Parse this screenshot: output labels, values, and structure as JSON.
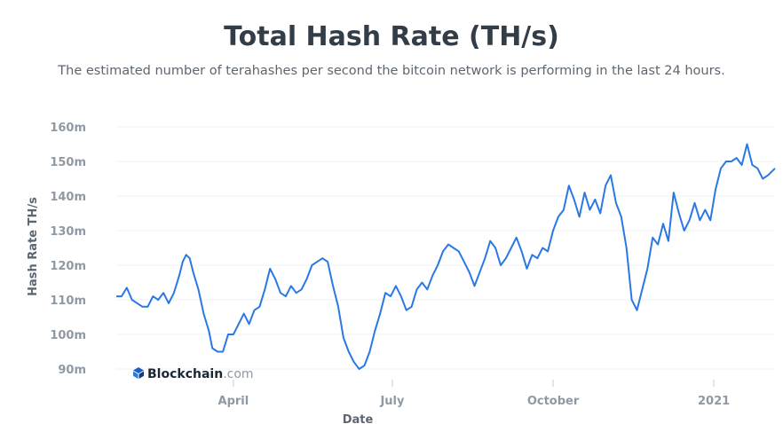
{
  "chart_data": {
    "type": "line",
    "title": "Total Hash Rate (TH/s)",
    "subtitle": "The estimated number of terahashes per second the bitcoin network is performing in the last 24 hours.",
    "xlabel": "Date",
    "ylabel": "Hash Rate TH/s",
    "ylim": [
      90,
      160
    ],
    "y_ticks": [
      {
        "value": 90,
        "label": "90m"
      },
      {
        "value": 100,
        "label": "100m"
      },
      {
        "value": 110,
        "label": "110m"
      },
      {
        "value": 120,
        "label": "120m"
      },
      {
        "value": 130,
        "label": "130m"
      },
      {
        "value": 140,
        "label": "140m"
      },
      {
        "value": 150,
        "label": "150m"
      },
      {
        "value": 160,
        "label": "160m"
      }
    ],
    "x_range": [
      "2020-01-25",
      "2021-02-05"
    ],
    "x_ticks": [
      {
        "date": "2020-04-01",
        "label": "April"
      },
      {
        "date": "2020-07-01",
        "label": "July"
      },
      {
        "date": "2020-10-01",
        "label": "October"
      },
      {
        "date": "2021-01-01",
        "label": "2021"
      }
    ],
    "grid": true,
    "legend": "none",
    "series": [
      {
        "color": "#2a78e4",
        "points": [
          [
            "2020-01-25",
            111
          ],
          [
            "2020-01-28",
            111
          ],
          [
            "2020-01-31",
            113.5
          ],
          [
            "2020-02-03",
            110
          ],
          [
            "2020-02-06",
            109
          ],
          [
            "2020-02-09",
            108
          ],
          [
            "2020-02-12",
            108
          ],
          [
            "2020-02-15",
            111
          ],
          [
            "2020-02-18",
            110
          ],
          [
            "2020-02-21",
            112
          ],
          [
            "2020-02-24",
            109
          ],
          [
            "2020-02-27",
            112
          ],
          [
            "2020-03-01",
            117
          ],
          [
            "2020-03-03",
            121
          ],
          [
            "2020-03-05",
            123
          ],
          [
            "2020-03-07",
            122
          ],
          [
            "2020-03-09",
            118
          ],
          [
            "2020-03-12",
            113
          ],
          [
            "2020-03-15",
            106
          ],
          [
            "2020-03-18",
            101
          ],
          [
            "2020-03-20",
            96
          ],
          [
            "2020-03-23",
            95
          ],
          [
            "2020-03-26",
            95
          ],
          [
            "2020-03-29",
            100
          ],
          [
            "2020-04-01",
            100
          ],
          [
            "2020-04-04",
            103
          ],
          [
            "2020-04-07",
            106
          ],
          [
            "2020-04-10",
            103
          ],
          [
            "2020-04-13",
            107
          ],
          [
            "2020-04-16",
            108
          ],
          [
            "2020-04-19",
            113
          ],
          [
            "2020-04-22",
            119
          ],
          [
            "2020-04-25",
            116
          ],
          [
            "2020-04-28",
            112
          ],
          [
            "2020-05-01",
            111
          ],
          [
            "2020-05-04",
            114
          ],
          [
            "2020-05-07",
            112
          ],
          [
            "2020-05-10",
            113
          ],
          [
            "2020-05-13",
            116
          ],
          [
            "2020-05-16",
            120
          ],
          [
            "2020-05-19",
            121
          ],
          [
            "2020-05-22",
            122
          ],
          [
            "2020-05-25",
            121
          ],
          [
            "2020-05-28",
            114
          ],
          [
            "2020-05-31",
            108
          ],
          [
            "2020-06-03",
            99
          ],
          [
            "2020-06-06",
            95
          ],
          [
            "2020-06-09",
            92
          ],
          [
            "2020-06-12",
            90
          ],
          [
            "2020-06-15",
            91
          ],
          [
            "2020-06-18",
            95
          ],
          [
            "2020-06-21",
            101
          ],
          [
            "2020-06-24",
            106
          ],
          [
            "2020-06-27",
            112
          ],
          [
            "2020-06-30",
            111
          ],
          [
            "2020-07-03",
            114
          ],
          [
            "2020-07-06",
            111
          ],
          [
            "2020-07-09",
            107
          ],
          [
            "2020-07-12",
            108
          ],
          [
            "2020-07-15",
            113
          ],
          [
            "2020-07-18",
            115
          ],
          [
            "2020-07-21",
            113
          ],
          [
            "2020-07-24",
            117
          ],
          [
            "2020-07-27",
            120
          ],
          [
            "2020-07-30",
            124
          ],
          [
            "2020-08-02",
            126
          ],
          [
            "2020-08-05",
            125
          ],
          [
            "2020-08-08",
            124
          ],
          [
            "2020-08-11",
            121
          ],
          [
            "2020-08-14",
            118
          ],
          [
            "2020-08-17",
            114
          ],
          [
            "2020-08-20",
            118
          ],
          [
            "2020-08-23",
            122
          ],
          [
            "2020-08-26",
            127
          ],
          [
            "2020-08-29",
            125
          ],
          [
            "2020-09-01",
            120
          ],
          [
            "2020-09-04",
            122
          ],
          [
            "2020-09-07",
            125
          ],
          [
            "2020-09-10",
            128
          ],
          [
            "2020-09-13",
            124
          ],
          [
            "2020-09-16",
            119
          ],
          [
            "2020-09-19",
            123
          ],
          [
            "2020-09-22",
            122
          ],
          [
            "2020-09-25",
            125
          ],
          [
            "2020-09-28",
            124
          ],
          [
            "2020-10-01",
            130
          ],
          [
            "2020-10-04",
            134
          ],
          [
            "2020-10-07",
            136
          ],
          [
            "2020-10-10",
            143
          ],
          [
            "2020-10-13",
            139
          ],
          [
            "2020-10-16",
            134
          ],
          [
            "2020-10-19",
            141
          ],
          [
            "2020-10-22",
            136
          ],
          [
            "2020-10-25",
            139
          ],
          [
            "2020-10-28",
            135
          ],
          [
            "2020-10-31",
            143
          ],
          [
            "2020-11-03",
            146
          ],
          [
            "2020-11-06",
            138
          ],
          [
            "2020-11-09",
            134
          ],
          [
            "2020-11-12",
            125
          ],
          [
            "2020-11-15",
            110
          ],
          [
            "2020-11-18",
            107
          ],
          [
            "2020-11-21",
            113
          ],
          [
            "2020-11-24",
            119
          ],
          [
            "2020-11-27",
            128
          ],
          [
            "2020-11-30",
            126
          ],
          [
            "2020-12-03",
            132
          ],
          [
            "2020-12-06",
            127
          ],
          [
            "2020-12-09",
            141
          ],
          [
            "2020-12-12",
            135
          ],
          [
            "2020-12-15",
            130
          ],
          [
            "2020-12-18",
            133
          ],
          [
            "2020-12-21",
            138
          ],
          [
            "2020-12-24",
            133
          ],
          [
            "2020-12-27",
            136
          ],
          [
            "2020-12-30",
            133
          ],
          [
            "2021-01-02",
            142
          ],
          [
            "2021-01-05",
            148
          ],
          [
            "2021-01-08",
            150
          ],
          [
            "2021-01-11",
            150
          ],
          [
            "2021-01-14",
            151
          ],
          [
            "2021-01-17",
            149
          ],
          [
            "2021-01-20",
            155
          ],
          [
            "2021-01-23",
            149
          ],
          [
            "2021-01-26",
            148
          ],
          [
            "2021-01-29",
            145
          ],
          [
            "2021-02-01",
            146
          ],
          [
            "2021-02-05",
            148
          ]
        ]
      }
    ],
    "watermark": {
      "name": "Blockchain",
      "suffix": ".com"
    }
  }
}
